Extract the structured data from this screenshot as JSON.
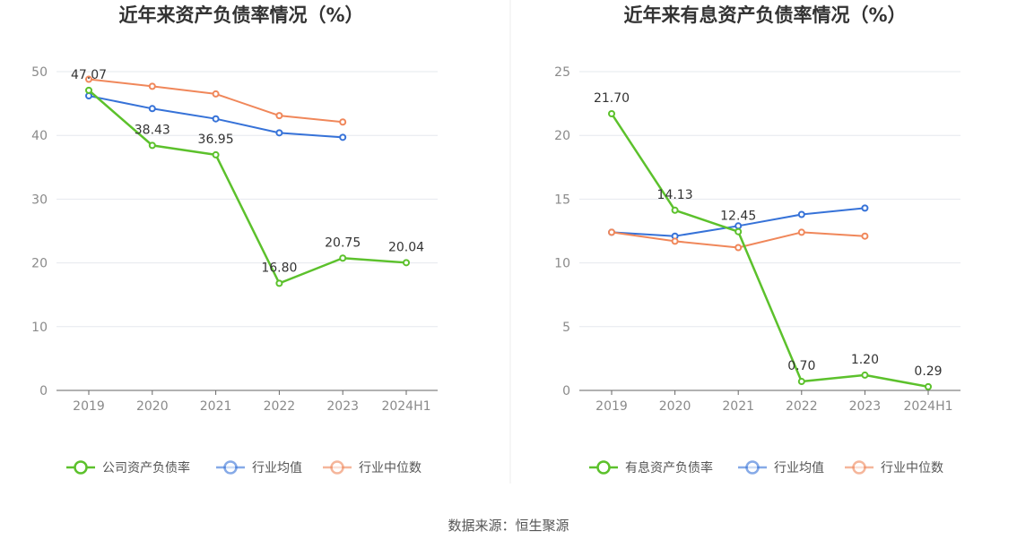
{
  "colors": {
    "company": "#5cc12c",
    "industry_avg": "#3672d8",
    "industry_median": "#f0875a",
    "grid": "#e6e8ee",
    "axis": "#666666",
    "divider": "#eeeeee"
  },
  "source_text": "数据来源：恒生聚源",
  "chart_data": [
    {
      "type": "line",
      "title": "近年来资产负债率情况（%）",
      "categories": [
        "2019",
        "2020",
        "2021",
        "2022",
        "2023",
        "2024H1"
      ],
      "ylim": [
        0,
        50
      ],
      "yticks": [
        0,
        10,
        20,
        30,
        40,
        50
      ],
      "grid": true,
      "legend_position": "bottom",
      "series": [
        {
          "name": "公司资产负债率",
          "key": "company",
          "values": [
            47.07,
            38.43,
            36.95,
            16.8,
            20.75,
            20.04
          ],
          "labels": [
            "47.07",
            "38.43",
            "36.95",
            "16.80",
            "20.75",
            "20.04"
          ]
        },
        {
          "name": "行业均值",
          "key": "industry_avg",
          "values": [
            46.2,
            44.2,
            42.6,
            40.4,
            39.7,
            null
          ],
          "labels": null
        },
        {
          "name": "行业中位数",
          "key": "industry_median",
          "values": [
            48.8,
            47.7,
            46.5,
            43.1,
            42.1,
            null
          ],
          "labels": null
        }
      ]
    },
    {
      "type": "line",
      "title": "近年来有息资产负债率情况（%）",
      "categories": [
        "2019",
        "2020",
        "2021",
        "2022",
        "2023",
        "2024H1"
      ],
      "ylim": [
        0,
        25
      ],
      "yticks": [
        0,
        5,
        10,
        15,
        20,
        25
      ],
      "grid": true,
      "legend_position": "bottom",
      "series": [
        {
          "name": "有息资产负债率",
          "key": "company",
          "values": [
            21.7,
            14.13,
            12.45,
            0.7,
            1.2,
            0.29
          ],
          "labels": [
            "21.70",
            "14.13",
            "12.45",
            "0.70",
            "1.20",
            "0.29"
          ]
        },
        {
          "name": "行业均值",
          "key": "industry_avg",
          "values": [
            12.4,
            12.1,
            12.9,
            13.8,
            14.3,
            null
          ],
          "labels": null
        },
        {
          "name": "行业中位数",
          "key": "industry_median",
          "values": [
            12.4,
            11.7,
            11.2,
            12.4,
            12.1,
            null
          ],
          "labels": null
        }
      ]
    }
  ]
}
